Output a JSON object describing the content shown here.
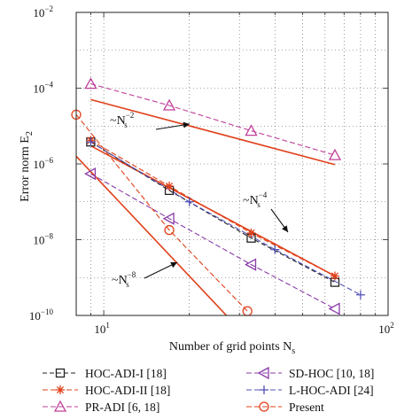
{
  "chart_data": {
    "type": "line",
    "xlabel": "Number of grid points N",
    "xlabel_sub": "s",
    "ylabel": "Error norm E",
    "ylabel_sub": "2",
    "xscale": "log",
    "yscale": "log",
    "xlim": [
      8,
      100
    ],
    "ylim": [
      1e-10,
      0.01
    ],
    "grid": true,
    "legend_position": "bottom",
    "x_ticks": [
      {
        "value": 10,
        "base": "10",
        "exp": "1"
      },
      {
        "value": 100,
        "base": "10",
        "exp": "2"
      }
    ],
    "y_ticks": [
      {
        "value": 1e-10,
        "base": "10",
        "exp": "−10"
      },
      {
        "value": 1e-08,
        "base": "10",
        "exp": "−8"
      },
      {
        "value": 1e-06,
        "base": "10",
        "exp": "−6"
      },
      {
        "value": 0.0001,
        "base": "10",
        "exp": "−4"
      },
      {
        "value": 0.01,
        "base": "10",
        "exp": "−2"
      }
    ],
    "series": [
      {
        "name": "HOC-ADI-I [18]",
        "color": "#222222",
        "dash": "5,3",
        "marker": "square",
        "x": [
          9,
          17,
          33,
          65
        ],
        "y": [
          3.8e-06,
          2e-07,
          1.1e-08,
          7.5e-10
        ]
      },
      {
        "name": "HOC-ADI-II [18]",
        "color": "#e0401a",
        "dash": "6,3",
        "marker": "asterisk",
        "x": [
          9,
          17,
          33,
          65
        ],
        "y": [
          4.2e-06,
          2.6e-07,
          1.5e-08,
          1.1e-09
        ]
      },
      {
        "name": "PR-ADI [6, 18]",
        "color": "#c0409a",
        "dash": "6,3",
        "marker": "triangle-up",
        "x": [
          9,
          17,
          33,
          65
        ],
        "y": [
          0.00013,
          3.5e-05,
          7.5e-06,
          1.7e-06
        ]
      },
      {
        "name": "SD-HOC [10, 18]",
        "color": "#8a3aa8",
        "dash": "6,3",
        "marker": "triangle-left",
        "x": [
          9,
          17,
          33,
          65
        ],
        "y": [
          5.5e-07,
          3.6e-08,
          2.2e-09,
          1.5e-10
        ]
      },
      {
        "name": "L-HOC-ADI [24]",
        "color": "#5050b8",
        "dash": "6,3",
        "marker": "plus",
        "x": [
          9,
          20,
          40,
          80
        ],
        "y": [
          3.8e-06,
          1e-07,
          5.5e-09,
          3.5e-10
        ]
      },
      {
        "name": "Present",
        "color": "#e0401a",
        "dash": "6,3",
        "marker": "circle",
        "x": [
          8,
          17,
          32
        ],
        "y": [
          2e-05,
          1.8e-08,
          1.3e-10
        ]
      }
    ],
    "reference_lines": [
      {
        "label": "~N",
        "exp": "−2",
        "x": [
          9,
          65
        ],
        "y": [
          5e-05,
          9.6e-07
        ]
      },
      {
        "label": "~N",
        "exp": "−4",
        "x": [
          9,
          65
        ],
        "y": [
          3e-06,
          1.1e-09
        ]
      },
      {
        "label": "~N",
        "exp": "−8",
        "x": [
          8,
          28
        ],
        "y": [
          1.6e-06,
          7.5e-11
        ]
      }
    ],
    "reference_color": "#e0401a"
  }
}
